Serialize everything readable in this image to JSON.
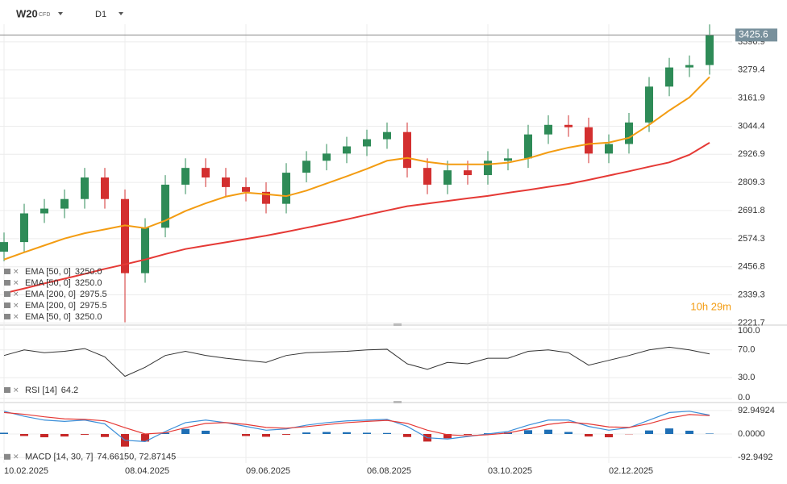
{
  "header": {
    "symbol": "W20",
    "badge": "CFD",
    "timeframe": "D1"
  },
  "countdown": "10h 29m",
  "chart_data": [
    {
      "type": "candlestick",
      "categories": [
        "10.02.2025",
        null,
        null,
        null,
        null,
        null,
        "08.04.2025",
        null,
        null,
        null,
        null,
        null,
        "09.06.2025",
        null,
        null,
        null,
        null,
        null,
        "06.08.2025",
        null,
        null,
        null,
        null,
        null,
        "03.10.2025",
        null,
        null,
        null,
        null,
        null,
        "02.12.2025",
        null,
        null,
        null,
        null,
        null
      ],
      "open": [
        2520,
        2560,
        2680,
        2700,
        2740,
        2830,
        2740,
        2430,
        2620,
        2800,
        2870,
        2830,
        2790,
        2770,
        2720,
        2850,
        2900,
        2930,
        2960,
        2990,
        3020,
        2870,
        2800,
        2860,
        2840,
        2900,
        2910,
        3010,
        3050,
        3040,
        2930,
        2970,
        3060,
        3210,
        3290,
        3300
      ],
      "high": [
        2600,
        2720,
        2740,
        2780,
        2870,
        2870,
        2780,
        2660,
        2840,
        2910,
        2910,
        2870,
        2830,
        2810,
        2890,
        2940,
        2970,
        3000,
        3030,
        3060,
        3060,
        2910,
        2900,
        2900,
        2940,
        2950,
        3050,
        3090,
        3090,
        3080,
        3010,
        3100,
        3250,
        3330,
        3340,
        3470
      ],
      "low": [
        2480,
        2520,
        2640,
        2660,
        2700,
        2700,
        2225,
        2390,
        2580,
        2760,
        2790,
        2750,
        2730,
        2680,
        2680,
        2810,
        2860,
        2890,
        2920,
        2950,
        2830,
        2760,
        2760,
        2800,
        2800,
        2860,
        2870,
        2970,
        3000,
        2890,
        2890,
        2930,
        3020,
        3170,
        3250,
        3260
      ],
      "close": [
        2560,
        2680,
        2700,
        2740,
        2830,
        2740,
        2430,
        2620,
        2800,
        2870,
        2830,
        2790,
        2770,
        2720,
        2850,
        2900,
        2930,
        2960,
        2990,
        3020,
        2870,
        2800,
        2860,
        2840,
        2900,
        2910,
        3010,
        3050,
        3040,
        2930,
        2970,
        3060,
        3210,
        3290,
        3300,
        3425.6
      ],
      "up_color": "#2e8b57",
      "down_color": "#d32f2f",
      "series": [
        {
          "name": "EMA [50, 0]",
          "color": "#f39c12",
          "values": [
            2487,
            2517,
            2546,
            2575,
            2597,
            2613,
            2630,
            2618,
            2650,
            2690,
            2722,
            2750,
            2767,
            2760,
            2752,
            2775,
            2805,
            2835,
            2866,
            2900,
            2912,
            2895,
            2885,
            2885,
            2885,
            2892,
            2910,
            2935,
            2955,
            2970,
            2976,
            2996,
            3050,
            3110,
            3165,
            3250
          ]
        },
        {
          "name": "EMA [200, 0]",
          "color": "#e53935",
          "values": [
            2346,
            2366,
            2387,
            2407,
            2427,
            2448,
            2467,
            2487,
            2510,
            2531,
            2545,
            2559,
            2573,
            2587,
            2603,
            2620,
            2637,
            2655,
            2674,
            2692,
            2710,
            2721,
            2732,
            2743,
            2753,
            2766,
            2778,
            2791,
            2803,
            2820,
            2838,
            2856,
            2875,
            2893,
            2925,
            2975.5
          ]
        }
      ],
      "legend": [
        {
          "name": "EMA [50, 0]",
          "value_label": "3250.0"
        },
        {
          "name": "EMA [50, 0]",
          "value_label": "3250.0"
        },
        {
          "name": "EMA [200, 0]",
          "value_label": "2975.5"
        },
        {
          "name": "EMA [200, 0]",
          "value_label": "2975.5"
        },
        {
          "name": "EMA [50, 0]",
          "value_label": "3250.0"
        }
      ],
      "current_price": 3425.6,
      "ylim": [
        2213,
        3545
      ],
      "yticks": [
        2221.7,
        2339.3,
        2456.8,
        2574.3,
        2691.8,
        2809.3,
        2926.9,
        3044.4,
        3161.9,
        3279.4,
        3396.9
      ],
      "grid": true
    },
    {
      "type": "line",
      "name": "RSI [14]",
      "value_label": "64.2",
      "color": "#333333",
      "values": [
        62,
        70,
        66,
        68,
        72,
        60,
        32,
        45,
        62,
        68,
        62,
        58,
        55,
        52,
        62,
        66,
        67,
        68,
        70,
        71,
        50,
        42,
        52,
        50,
        58,
        58,
        68,
        70,
        66,
        48,
        55,
        62,
        70,
        74,
        70,
        64.2
      ],
      "ylim": [
        0,
        100
      ],
      "yticks": [
        {
          "value": 0,
          "label": "0.0"
        },
        {
          "value": 30,
          "label": "30.0"
        },
        {
          "value": 70,
          "label": "70.0"
        },
        {
          "value": 100,
          "label": "100.0"
        }
      ],
      "grid": true
    },
    {
      "type": "macd",
      "name": "MACD [14, 30, 7]",
      "value_label": "74.66150, 72.87145",
      "series": [
        {
          "name": "MACD",
          "color": "#3b8fd9",
          "values": [
            90,
            70,
            55,
            50,
            55,
            40,
            -25,
            -30,
            10,
            45,
            55,
            45,
            30,
            15,
            20,
            35,
            45,
            52,
            55,
            58,
            30,
            -15,
            -20,
            -10,
            0,
            10,
            35,
            55,
            55,
            30,
            15,
            25,
            55,
            85,
            90,
            74.6615
          ]
        },
        {
          "name": "Signal",
          "color": "#e53935",
          "values": [
            85,
            78,
            68,
            60,
            58,
            52,
            25,
            0,
            5,
            25,
            42,
            45,
            38,
            26,
            23,
            29,
            37,
            45,
            50,
            54,
            42,
            15,
            -3,
            -7,
            -3,
            4,
            20,
            38,
            47,
            40,
            28,
            26,
            41,
            63,
            77,
            72.87145
          ]
        }
      ],
      "histogram": [
        5,
        -8,
        -13,
        -10,
        -3,
        -12,
        -50,
        -30,
        5,
        20,
        13,
        0,
        -8,
        -11,
        -3,
        6,
        8,
        7,
        5,
        4,
        -12,
        -30,
        -17,
        -3,
        3,
        6,
        15,
        17,
        8,
        -10,
        -13,
        -1,
        14,
        22,
        13,
        1.8
      ],
      "hist_up_color": "#1f6fb5",
      "hist_down_color": "#c62828",
      "ylim": [
        -115,
        115
      ],
      "yticks": [
        {
          "value": -92.9492,
          "label": "-92.9492"
        },
        {
          "value": 0,
          "label": "0.0000"
        },
        {
          "value": 92.94924,
          "label": "92.94924"
        }
      ],
      "grid": true
    }
  ]
}
